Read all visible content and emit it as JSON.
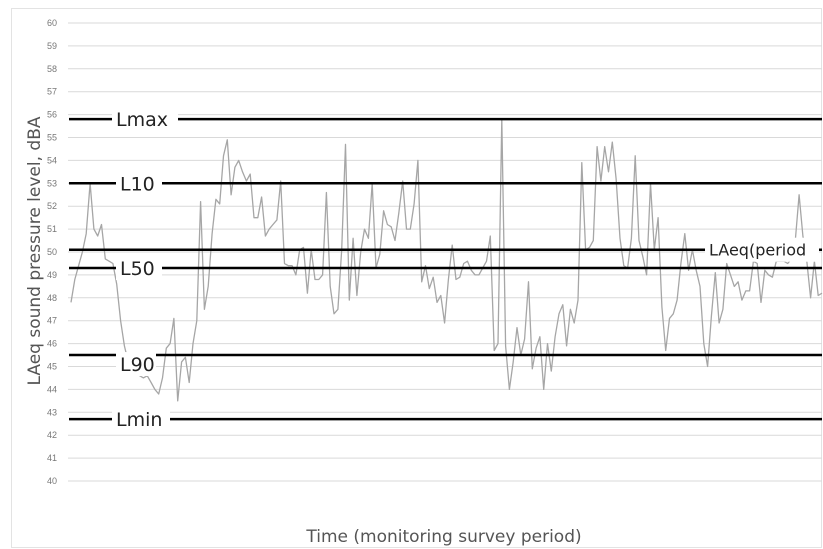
{
  "chart_data": {
    "type": "line",
    "title": "",
    "xlabel": "Time (monitoring survey period)",
    "ylabel": "LAeq sound pressure level, dBA",
    "ylim": [
      40,
      60
    ],
    "yticks": [
      "40",
      "41",
      "42",
      "43",
      "44",
      "45",
      "46",
      "47",
      "48",
      "49",
      "50",
      "51",
      "52",
      "53",
      "54",
      "55",
      "56",
      "57",
      "58",
      "59",
      "60"
    ],
    "grid": true,
    "colors": {
      "series": "#a6a6a6",
      "reference": "#000000",
      "grid": "#d9d9d9"
    },
    "series": [
      {
        "values": [
          47.8,
          48.8,
          49.4,
          50.0,
          50.8,
          53.0,
          51.0,
          50.7,
          51.2,
          49.7,
          49.6,
          49.5,
          48.6,
          47.0,
          45.9,
          45.2,
          45.0,
          44.8,
          44.6,
          44.5,
          44.6,
          44.3,
          44.0,
          43.8,
          44.5,
          45.8,
          46.0,
          47.1,
          43.5,
          45.2,
          45.4,
          44.3,
          46.0,
          47.0,
          52.2,
          47.5,
          48.5,
          50.8,
          52.3,
          52.1,
          54.2,
          54.9,
          52.5,
          53.7,
          54.0,
          53.5,
          53.1,
          53.4,
          51.5,
          51.5,
          52.4,
          50.7,
          51.0,
          51.2,
          51.4,
          53.1,
          49.5,
          49.4,
          49.4,
          49.0,
          50.1,
          50.2,
          48.2,
          50.1,
          48.8,
          48.8,
          49.0,
          52.6,
          48.5,
          47.3,
          47.5,
          50.1,
          54.7,
          47.9,
          50.6,
          48.1,
          50.0,
          51.0,
          50.6,
          53.0,
          49.3,
          49.9,
          51.8,
          51.2,
          51.1,
          50.5,
          51.7,
          53.1,
          51.0,
          51.0,
          52.1,
          54.0,
          48.7,
          49.4,
          48.4,
          48.9,
          47.8,
          48.1,
          46.9,
          48.8,
          50.3,
          48.8,
          48.9,
          49.5,
          49.6,
          49.2,
          49.0,
          49.0,
          49.3,
          49.6,
          50.7,
          45.7,
          46.0,
          55.8,
          45.9,
          44.0,
          45.2,
          46.7,
          45.5,
          46.2,
          48.7,
          44.9,
          45.8,
          46.3,
          44.0,
          46.0,
          44.8,
          46.3,
          47.3,
          47.7,
          45.9,
          47.5,
          46.9,
          47.9,
          53.9,
          50.1,
          50.2,
          50.5,
          54.6,
          53.1,
          54.6,
          53.5,
          54.8,
          53.2,
          50.6,
          49.4,
          49.3,
          50.6,
          54.2,
          50.5,
          49.8,
          49.0,
          53.0,
          50.1,
          51.5,
          47.6,
          45.7,
          47.1,
          47.3,
          47.9,
          49.5,
          50.8,
          49.2,
          50.1,
          49.2,
          48.5,
          46.0,
          45.0,
          47.2,
          49.1,
          46.9,
          47.5,
          49.5,
          49.0,
          48.5,
          48.7,
          47.9,
          48.3,
          48.3,
          49.6,
          49.5,
          47.8,
          49.2,
          49.0,
          48.9,
          49.6,
          49.6,
          49.6,
          49.5,
          49.7,
          50.5,
          52.5,
          50.7,
          49.6,
          48.0,
          49.6,
          48.1,
          48.2
        ]
      }
    ],
    "reference_lines": [
      {
        "label": "Lmax",
        "value": 55.8
      },
      {
        "label": "L10",
        "value": 53.0
      },
      {
        "label": "LAeq(period",
        "value": 50.1
      },
      {
        "label": "L50",
        "value": 49.3
      },
      {
        "label": "L90",
        "value": 45.5
      },
      {
        "label": "Lmin",
        "value": 42.7
      }
    ]
  }
}
